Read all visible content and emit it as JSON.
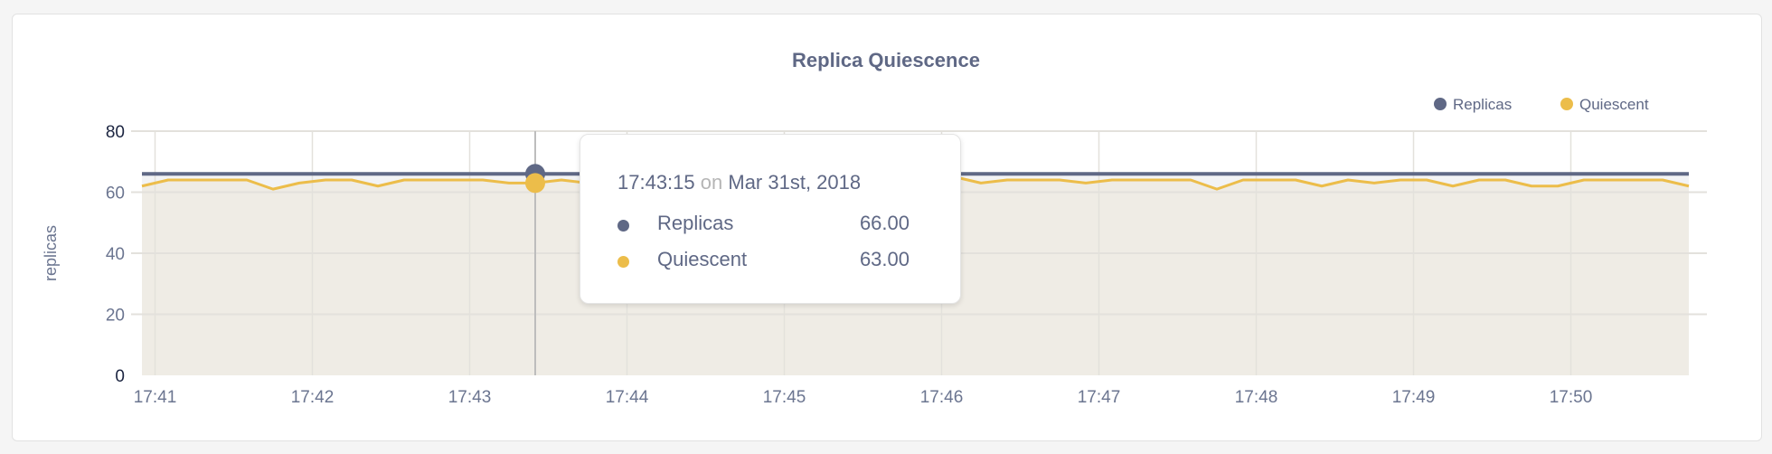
{
  "chart_data": {
    "type": "line",
    "title": "Replica Quiescence",
    "ylabel": "replicas",
    "xlabel": "",
    "ylim": [
      0,
      80
    ],
    "yticks": [
      "0",
      "20",
      "40",
      "60",
      "80"
    ],
    "xticks": [
      "17:41",
      "17:42",
      "17:43",
      "17:44",
      "17:45",
      "17:46",
      "17:47",
      "17:48",
      "17:49",
      "17:50"
    ],
    "x_start": "17:40:55",
    "x_step_seconds": 10,
    "grid": true,
    "legend_placement": "top-right",
    "series": [
      {
        "name": "Replicas",
        "color": "#5f6885",
        "values": [
          66,
          66,
          66,
          66,
          66,
          66,
          66,
          66,
          66,
          66,
          66,
          66,
          66,
          66,
          66,
          66,
          66,
          66,
          66,
          66,
          66,
          66,
          66,
          66,
          66,
          66,
          66,
          66,
          66,
          66,
          66,
          66,
          66,
          66,
          66,
          66,
          66,
          66,
          66,
          66,
          66,
          66,
          66,
          66,
          66,
          66,
          66,
          66,
          66,
          66,
          66,
          66,
          66,
          66,
          66,
          66,
          66,
          66,
          66,
          66
        ]
      },
      {
        "name": "Quiescent",
        "color": "#ecbd4a",
        "values": [
          62,
          64,
          64,
          64,
          64,
          61,
          63,
          64,
          64,
          62,
          64,
          64,
          64,
          64,
          63,
          63,
          64,
          63,
          64,
          64,
          64,
          63,
          64,
          64,
          64,
          64,
          62,
          64,
          64,
          64,
          64,
          65,
          63,
          64,
          64,
          64,
          63,
          64,
          64,
          64,
          64,
          61,
          64,
          64,
          64,
          62,
          64,
          63,
          64,
          64,
          62,
          64,
          64,
          62,
          62,
          64,
          64,
          64,
          64,
          62
        ]
      }
    ],
    "hover_index": 15
  },
  "tooltip": {
    "time": "17:43:15",
    "on": "on",
    "date": "Mar 31st, 2018",
    "rows": [
      {
        "label": "Replicas",
        "value": "66.00",
        "color": "#5f6885"
      },
      {
        "label": "Quiescent",
        "value": "63.00",
        "color": "#ecbd4a"
      }
    ]
  }
}
